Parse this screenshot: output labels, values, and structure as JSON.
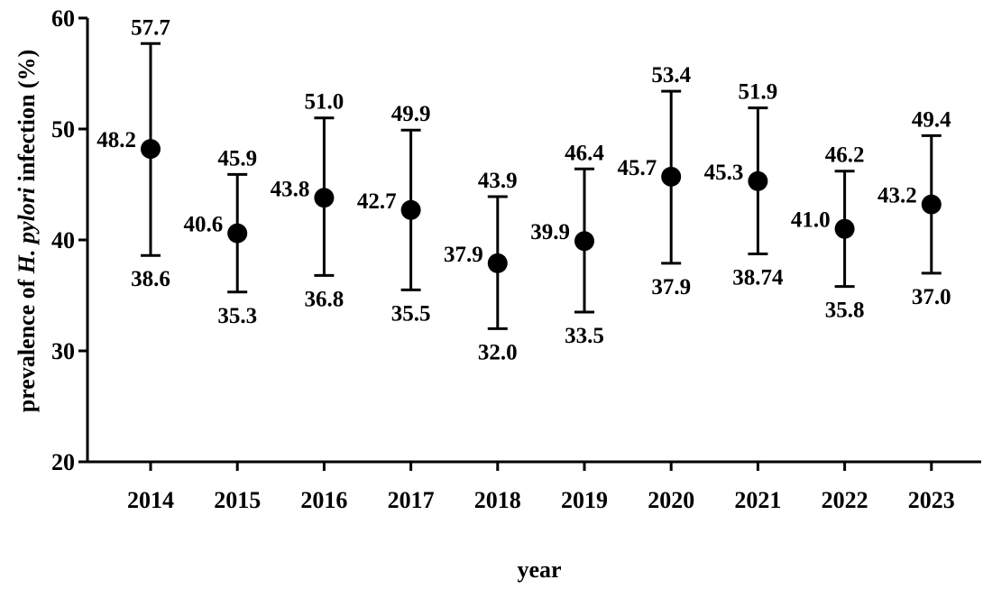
{
  "chart_data": {
    "type": "scatter",
    "xlabel": "year",
    "ylabel_prefix": "prevalence of ",
    "ylabel_italic": "H. pylori",
    "ylabel_suffix": " infection (%)",
    "ylim": [
      20,
      60
    ],
    "yticks": [
      "20",
      "30",
      "40",
      "50",
      "60"
    ],
    "categories": [
      "2014",
      "2015",
      "2016",
      "2017",
      "2018",
      "2019",
      "2020",
      "2021",
      "2022",
      "2023"
    ],
    "values": [
      48.2,
      40.6,
      43.8,
      42.7,
      37.9,
      39.9,
      45.7,
      45.3,
      41.0,
      43.2
    ],
    "value_labels": [
      "48.2",
      "40.6",
      "43.8",
      "42.7",
      "37.9",
      "39.9",
      "45.7",
      "45.3",
      "41.0",
      "43.2"
    ],
    "upper": [
      57.7,
      45.9,
      51.0,
      49.9,
      43.9,
      46.4,
      53.4,
      51.9,
      46.2,
      49.4
    ],
    "upper_labels": [
      "57.7",
      "45.9",
      "51.0",
      "49.9",
      "43.9",
      "46.4",
      "53.4",
      "51.9",
      "46.2",
      "49.4"
    ],
    "lower": [
      38.6,
      35.3,
      36.8,
      35.5,
      32.0,
      33.5,
      37.9,
      38.74,
      35.8,
      37.0
    ],
    "lower_labels": [
      "38.6",
      "35.3",
      "36.8",
      "35.5",
      "32.0",
      "33.5",
      "37.9",
      "38.74",
      "35.8",
      "37.0"
    ],
    "grid": false,
    "legend": "none"
  }
}
